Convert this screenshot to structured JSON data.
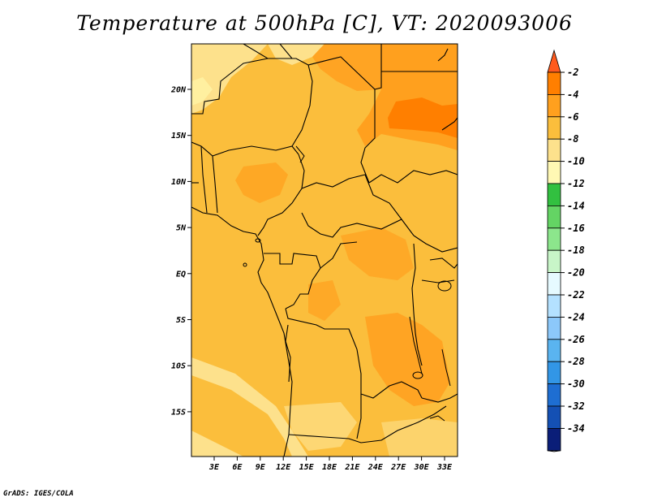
{
  "title": "Temperature at 500hPa [C], VT: 2020093006",
  "credit": "GrADS: IGES/COLA",
  "lat_ticks": [
    "20N",
    "15N",
    "10N",
    "5N",
    "EQ",
    "5S",
    "10S",
    "15S"
  ],
  "lon_ticks": [
    "3E",
    "6E",
    "9E",
    "12E",
    "15E",
    "18E",
    "21E",
    "24E",
    "27E",
    "30E",
    "33E"
  ],
  "colorbar": {
    "labels": [
      "-2",
      "-4",
      "-6",
      "-8",
      "-10",
      "-12",
      "-14",
      "-16",
      "-18",
      "-20",
      "-22",
      "-24",
      "-26",
      "-28",
      "-30",
      "-32",
      "-34"
    ],
    "colors": [
      "#ff5a1e",
      "#ff7f00",
      "#ffa01e",
      "#fbbe3c",
      "#fde18c",
      "#fff8b4",
      "#32c040",
      "#64d464",
      "#8ce68c",
      "#c8f5c8",
      "#e6faff",
      "#b4e1ff",
      "#8cc8fa",
      "#5ab4f0",
      "#3296e6",
      "#1e6ed2",
      "#1450b4",
      "#0a1e78",
      "#e6e6f5"
    ]
  },
  "colors": {
    "dominant": "#fbbe3c",
    "warm": "#ffa01e",
    "warmest": "#ff7f00",
    "cool": "#fde18c"
  }
}
